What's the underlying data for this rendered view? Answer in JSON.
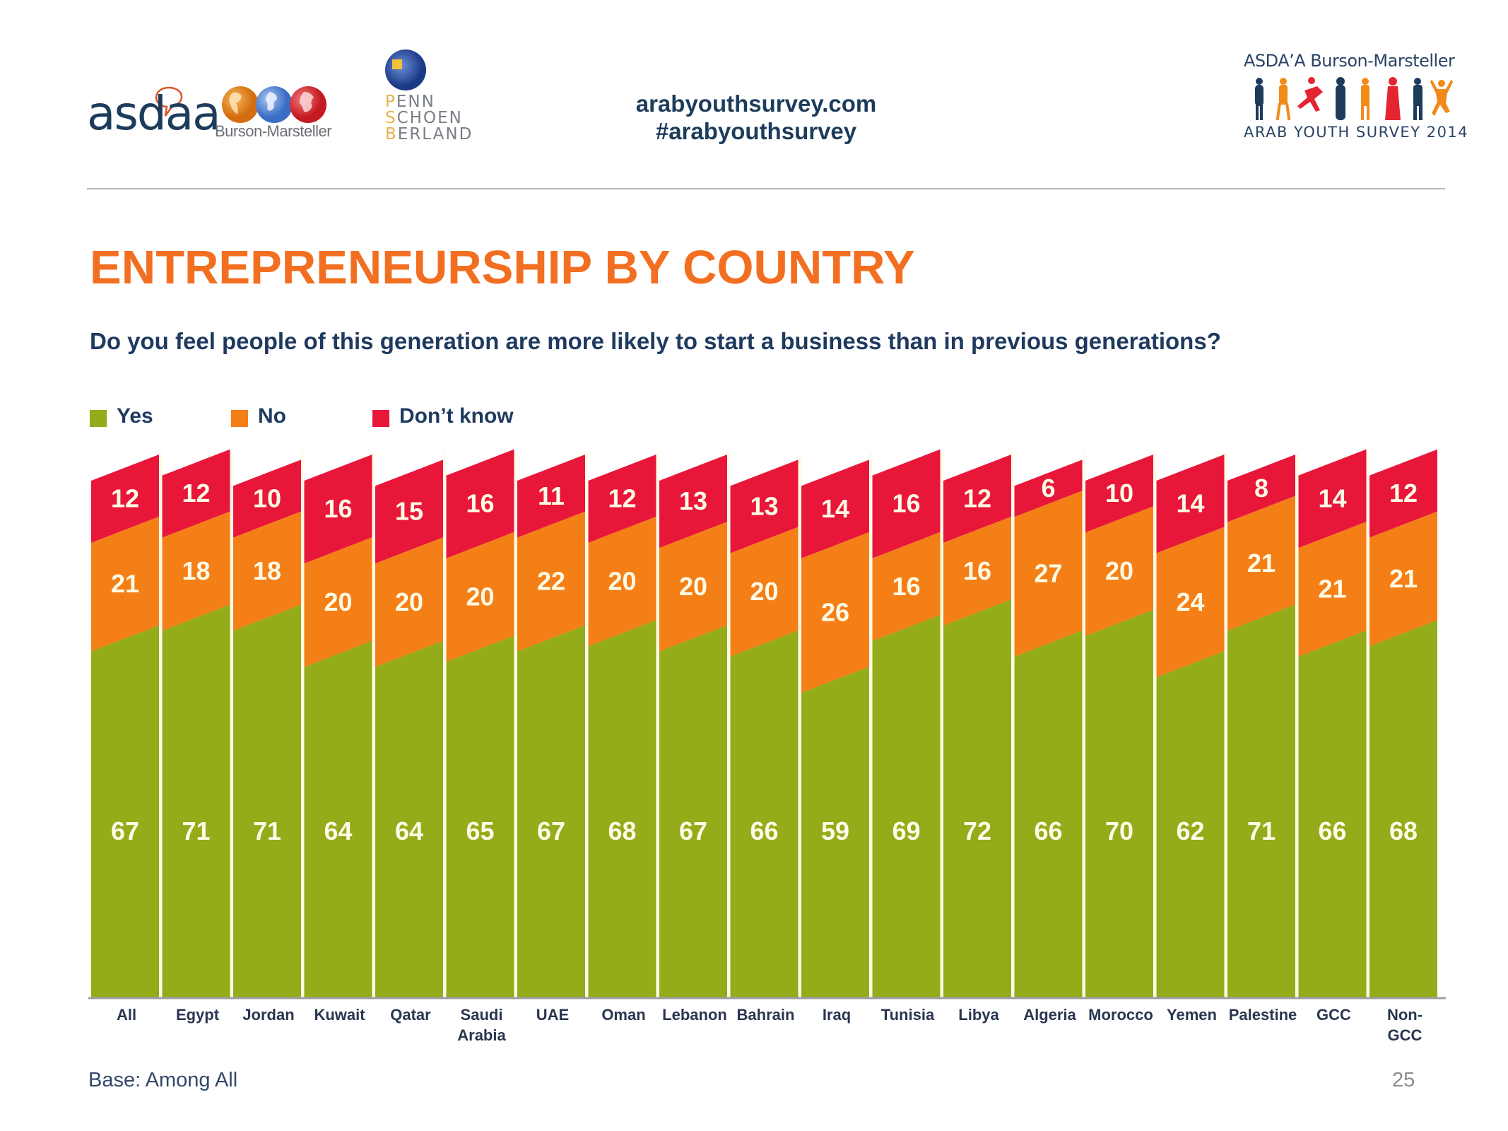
{
  "header": {
    "logo_asdaa": "asdaa",
    "logo_burson": "Burson-Marsteller",
    "logo_psb_lines": [
      "PENN",
      "SCHOEN",
      "BERLAND"
    ],
    "site_url": "arabyouthsurvey.com",
    "hashtag": "#arabyouthsurvey",
    "ays_brand": "ASDA’A Burson-Marsteller",
    "ays_title": "ARAB YOUTH SURVEY 2014"
  },
  "footer": {
    "base": "Base: Among All",
    "page_number": "25"
  },
  "colors": {
    "yes": "#94ab1a",
    "no": "#f57f17",
    "dont_know": "#e8173a",
    "title": "#f26f21",
    "text_dark": "#1f3a5f"
  },
  "chart_data": {
    "type": "bar",
    "stacked": true,
    "percent_stacked": true,
    "title": "ENTREPRENEURSHIP BY COUNTRY",
    "subtitle": "Do you feel people of this generation are more likely to start a business than in previous generations?",
    "xlabel": "",
    "ylabel": "",
    "ylim": [
      0,
      100
    ],
    "grid": false,
    "legend_position": "top-left",
    "categories": [
      "All",
      "Egypt",
      "Jordan",
      "Kuwait",
      "Qatar",
      "Saudi Arabia",
      "UAE",
      "Oman",
      "Lebanon",
      "Bahrain",
      "Iraq",
      "Tunisia",
      "Libya",
      "Algeria",
      "Morocco",
      "Yemen",
      "Palestine",
      "GCC",
      "Non-GCC"
    ],
    "category_label_lines": [
      [
        "All"
      ],
      [
        "Egypt"
      ],
      [
        "Jordan"
      ],
      [
        "Kuwait"
      ],
      [
        "Qatar"
      ],
      [
        "Saudi",
        "Arabia"
      ],
      [
        "UAE"
      ],
      [
        "Oman"
      ],
      [
        "Lebanon"
      ],
      [
        "Bahrain"
      ],
      [
        "Iraq"
      ],
      [
        "Tunisia"
      ],
      [
        "Libya"
      ],
      [
        "Algeria"
      ],
      [
        "Morocco"
      ],
      [
        "Yemen"
      ],
      [
        "Palestine"
      ],
      [
        "GCC"
      ],
      [
        "Non-",
        "GCC"
      ]
    ],
    "series": [
      {
        "name": "Yes",
        "color": "#94ab1a",
        "values": [
          67,
          71,
          71,
          64,
          64,
          65,
          67,
          68,
          67,
          66,
          59,
          69,
          72,
          66,
          70,
          62,
          71,
          66,
          68
        ]
      },
      {
        "name": "No",
        "color": "#f57f17",
        "values": [
          21,
          18,
          18,
          20,
          20,
          20,
          22,
          20,
          20,
          20,
          26,
          16,
          16,
          27,
          20,
          24,
          21,
          21,
          21
        ]
      },
      {
        "name": "Don’t know",
        "color": "#e8173a",
        "values": [
          12,
          12,
          10,
          16,
          15,
          16,
          11,
          12,
          13,
          13,
          14,
          16,
          12,
          6,
          10,
          14,
          8,
          14,
          12
        ]
      }
    ]
  }
}
